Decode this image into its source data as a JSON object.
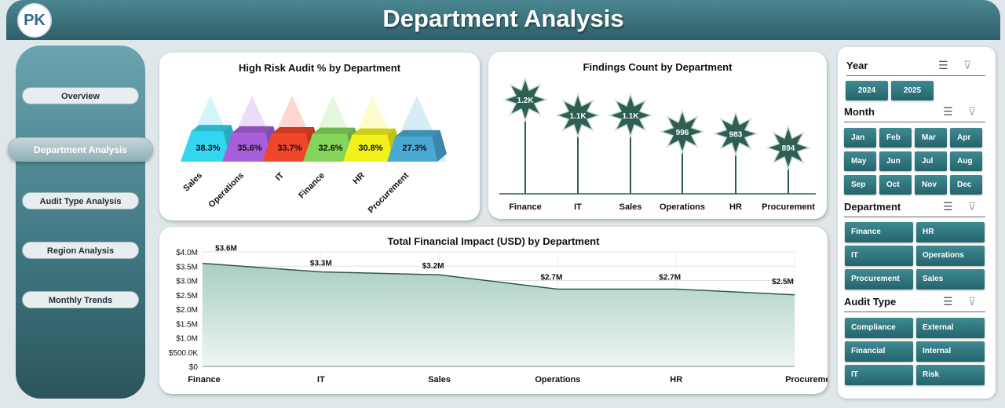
{
  "header": {
    "title": "Department Analysis",
    "logo_text": "PK"
  },
  "nav": [
    {
      "label": "Overview",
      "active": false
    },
    {
      "label": "Department Analysis",
      "active": true
    },
    {
      "label": "Audit Type Analysis",
      "active": false
    },
    {
      "label": "Region Analysis",
      "active": false
    },
    {
      "label": "Monthly Trends",
      "active": false
    }
  ],
  "colors": {
    "header": "#2e5f68",
    "accent": "#2e5a4e",
    "slicer_button": "#2e7880"
  },
  "chart_data": [
    {
      "type": "bar",
      "variant": "3d-pyramid",
      "title": "High Risk Audit % by Department",
      "categories": [
        "Sales",
        "Operations",
        "IT",
        "Finance",
        "HR",
        "Procurement"
      ],
      "values": [
        38.3,
        35.6,
        33.7,
        32.6,
        30.8,
        27.3
      ],
      "labels": [
        "38.3%",
        "35.6%",
        "33.7%",
        "32.6%",
        "30.8%",
        "27.3%"
      ],
      "colors": [
        "#33d6f0",
        "#a75fdc",
        "#f0462a",
        "#84d45a",
        "#f2f21a",
        "#4aa8d4"
      ]
    },
    {
      "type": "lollipop",
      "title": "Findings Count by Department",
      "categories": [
        "Finance",
        "IT",
        "Sales",
        "Operations",
        "HR",
        "Procurement"
      ],
      "values": [
        1200,
        1100,
        1100,
        996,
        983,
        894
      ],
      "labels": [
        "1.2K",
        "1.1K",
        "1.1K",
        "996",
        "983",
        "894"
      ],
      "marker": "star"
    },
    {
      "type": "area",
      "title": "Total Financial Impact (USD) by Department",
      "categories": [
        "Finance",
        "IT",
        "Sales",
        "Operations",
        "HR",
        "Procurement"
      ],
      "values": [
        3.6,
        3.3,
        3.2,
        2.7,
        2.7,
        2.5
      ],
      "labels": [
        "$3.6M",
        "$3.3M",
        "$3.2M",
        "$2.7M",
        "$2.7M",
        "$2.5M"
      ],
      "unit": "million USD",
      "ylim": [
        0,
        4
      ],
      "yticks": [
        "$0",
        "$500.0K",
        "$1.0M",
        "$1.5M",
        "$2.0M",
        "$2.5M",
        "$3.0M",
        "$3.5M",
        "$4.0M"
      ],
      "grid": true
    }
  ],
  "slicers": [
    {
      "title": "Year",
      "items": [
        "2024",
        "2025"
      ]
    },
    {
      "title": "Month",
      "items": [
        "Jan",
        "Feb",
        "Mar",
        "Apr",
        "May",
        "Jun",
        "Jul",
        "Aug",
        "Sep",
        "Oct",
        "Nov",
        "Dec"
      ]
    },
    {
      "title": "Department",
      "items": [
        "Finance",
        "HR",
        "IT",
        "Operations",
        "Procurement",
        "Sales"
      ]
    },
    {
      "title": "Audit Type",
      "items": [
        "Compliance",
        "External",
        "Financial",
        "Internal",
        "IT",
        "Risk"
      ]
    }
  ]
}
